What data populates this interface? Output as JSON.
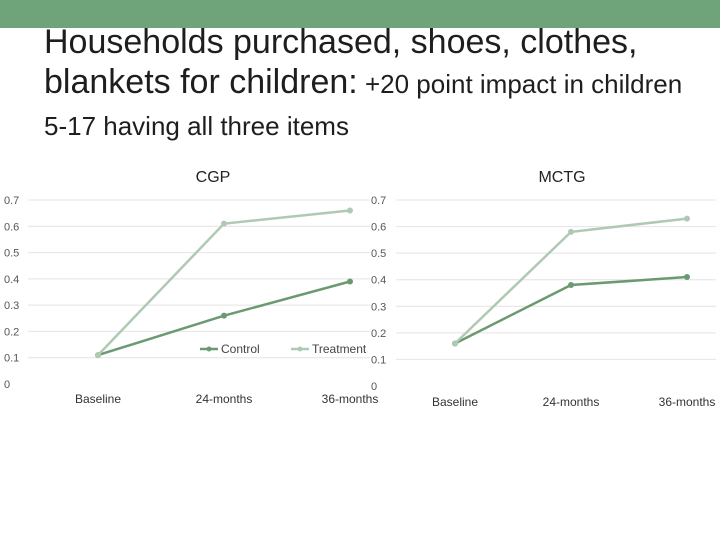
{
  "slide": {
    "title_main": "Households purchased, shoes, clothes, blankets for children:",
    "title_tail": " +20 point impact in children",
    "subtitle": "5-17 having all three items"
  },
  "colors": {
    "header_bar": "#6fa47a",
    "control": "#6b9a72",
    "treatment": "#b0c9b2",
    "grid": "#e4e4e4"
  },
  "chart_data": [
    {
      "type": "line",
      "title": "CGP",
      "categories": [
        "Baseline",
        "24-months",
        "36-months"
      ],
      "ylim": [
        0,
        0.7
      ],
      "yticks": [
        "0",
        "0.1",
        "0.2",
        "0.3",
        "0.4",
        "0.5",
        "0.6",
        "0.7"
      ],
      "grid": true,
      "legend": "bottom-right",
      "series": [
        {
          "name": "Control",
          "values": [
            0.11,
            0.26,
            0.39
          ]
        },
        {
          "name": "Treatment",
          "values": [
            0.11,
            0.61,
            0.66
          ]
        }
      ]
    },
    {
      "type": "line",
      "title": "MCTG",
      "categories": [
        "Baseline",
        "24-months",
        "36-months"
      ],
      "ylim": [
        0,
        0.7
      ],
      "yticks": [
        "0",
        "0.1",
        "0.2",
        "0.3",
        "0.4",
        "0.5",
        "0.6",
        "0.7"
      ],
      "grid": true,
      "series": [
        {
          "name": "Control",
          "values": [
            0.16,
            0.38,
            0.41
          ]
        },
        {
          "name": "Treatment",
          "values": [
            0.16,
            0.58,
            0.63
          ]
        }
      ]
    }
  ]
}
